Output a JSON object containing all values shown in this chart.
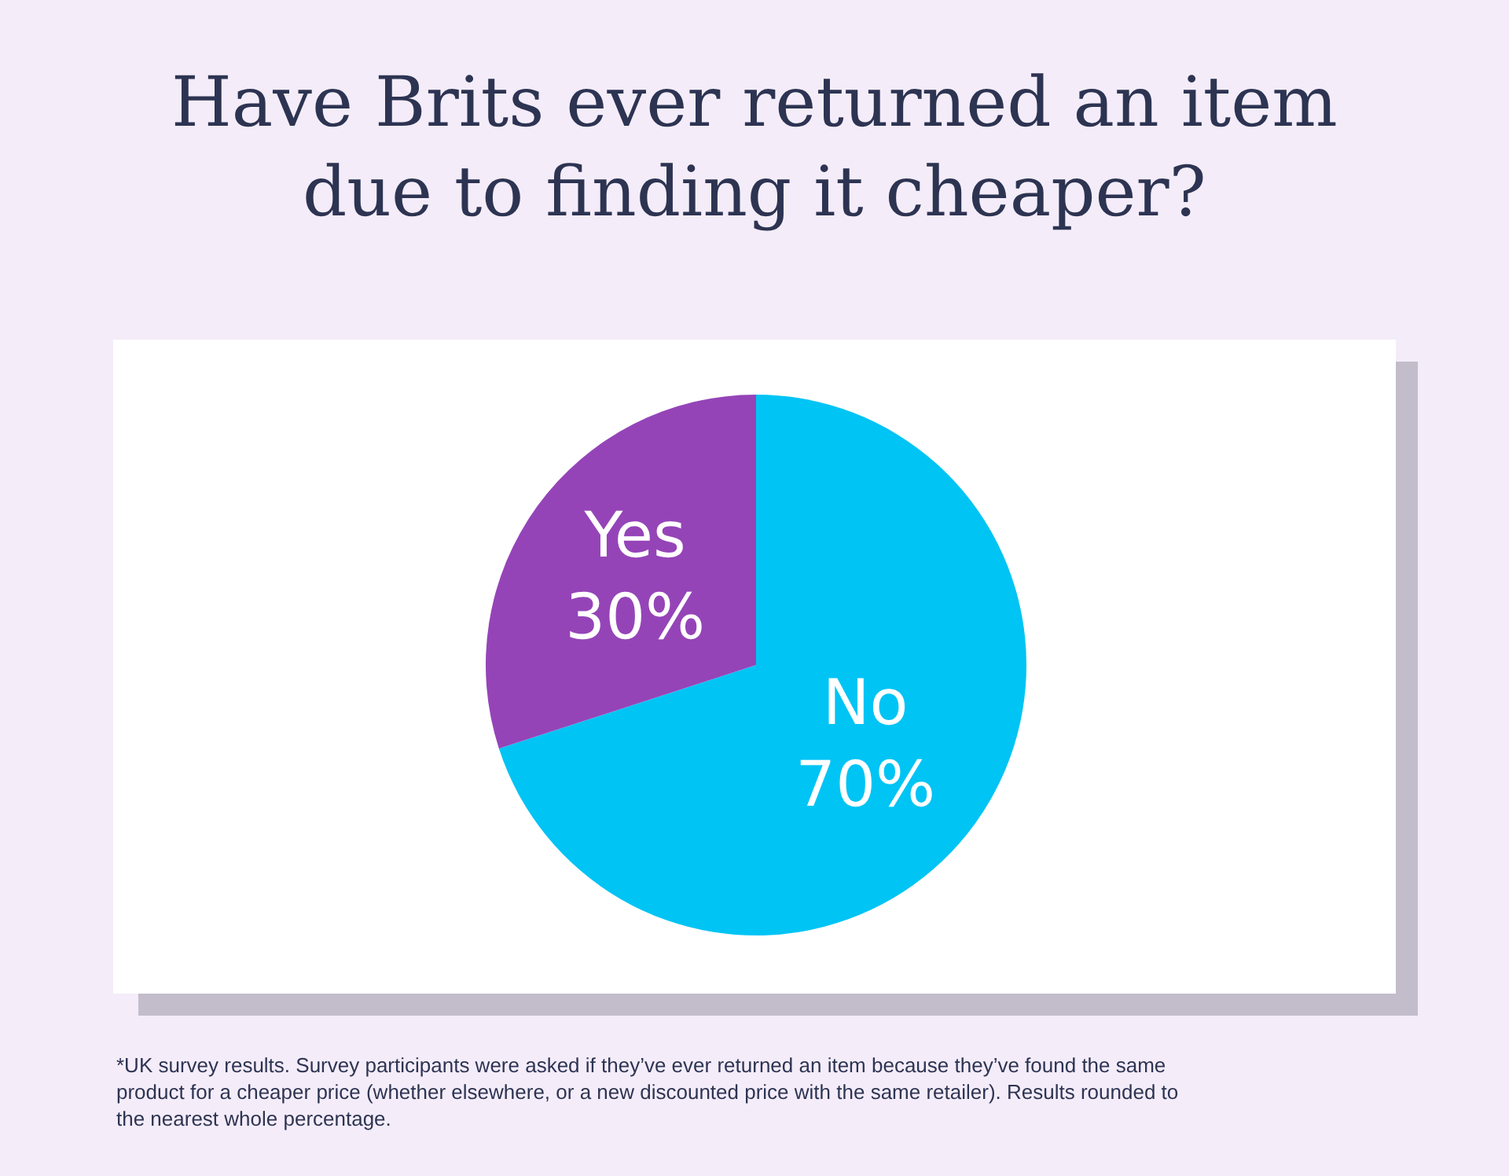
{
  "chart_data": {
    "type": "pie",
    "title": "Have Brits ever returned an item due to finding it cheaper?",
    "categories": [
      "No",
      "Yes"
    ],
    "values": [
      70,
      30
    ],
    "value_labels": [
      "70%",
      "30%"
    ],
    "colors": [
      "#00c4f4",
      "#9544b8"
    ],
    "legend": false,
    "annotations": [
      "*UK survey results. Survey participants were asked if they’ve ever returned an item because they’ve found the same product for a cheaper price (whether elsewhere, or a new discounted price with the same retailer). Results rounded to the nearest whole percentage."
    ]
  }
}
